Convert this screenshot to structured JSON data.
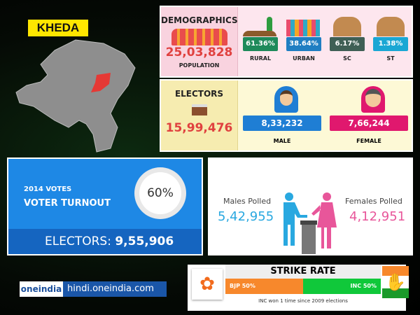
{
  "district": "KHEDA",
  "demographics": {
    "title": "DEMOGRAPHICS",
    "population": "25,03,828",
    "population_label": "POPULATION",
    "stats": [
      {
        "value": "61.36%",
        "label": "RURAL",
        "color": "#1e8a5a"
      },
      {
        "value": "38.64%",
        "label": "URBAN",
        "color": "#1f7ec2"
      },
      {
        "value": "6.17%",
        "label": "SC",
        "color": "#3f5f55"
      },
      {
        "value": "1.38%",
        "label": "ST",
        "color": "#1aa7d4"
      }
    ]
  },
  "electors": {
    "title": "ELECTORS",
    "total": "15,99,476",
    "male": "8,33,232",
    "male_label": "MALE",
    "female": "7,66,244",
    "female_label": "FEMALE",
    "male_color": "#1f7ed4",
    "female_color": "#e0186e"
  },
  "turnout": {
    "year_label": "2014 VOTES",
    "title": "VOTER TURNOUT",
    "percent": "60%",
    "percent_value": 60,
    "electors_label": "ELECTORS:",
    "electors_value": "9,55,906"
  },
  "polled": {
    "males_label": "Males Polled",
    "males_value": "5,42,955",
    "females_label": "Females Polled",
    "females_value": "4,12,951"
  },
  "branding": {
    "logo": "oneindia",
    "site": "hindi.oneindia.com"
  },
  "strike_rate": {
    "title": "STRIKE RATE",
    "bjp_label": "BJP 50%",
    "bjp_value": 50,
    "inc_label": "INC 50%",
    "inc_value": 50,
    "note": "INC won 1 time since 2009 elections",
    "bjp_color": "#f7882c",
    "inc_color": "#10c83a"
  }
}
